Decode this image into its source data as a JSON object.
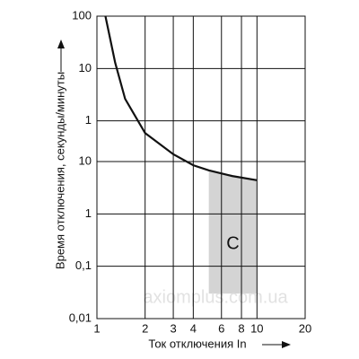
{
  "chart_data": {
    "type": "line",
    "xlabel": "Ток отключения In",
    "ylabel": "Время отключения, секунды/минуты",
    "xscale": "log",
    "yscale": "log",
    "grid": true,
    "xlim": [
      1,
      20
    ],
    "xticks": [
      1,
      2,
      3,
      4,
      6,
      8,
      10,
      20
    ],
    "ylim": [
      0.01,
      6000
    ],
    "yticks": [
      {
        "value": 0.01,
        "label": "0,01"
      },
      {
        "value": 0.1,
        "label": "0,1"
      },
      1,
      10,
      {
        "value": 60,
        "label": "1"
      },
      {
        "value": 600,
        "label": "10"
      },
      {
        "value": 6000,
        "label": "100"
      }
    ],
    "series": [
      {
        "color": "#111111",
        "x": [
          1.13,
          1.3,
          1.5,
          2,
          3,
          4,
          5,
          7,
          10
        ],
        "values": [
          6000,
          776,
          158,
          35,
          13.8,
          8.5,
          6.8,
          5.3,
          4.4
        ]
      }
    ],
    "zone": {
      "label": "C",
      "x": [
        5,
        10
      ],
      "lower": 0.03,
      "color": "#d4d4d4"
    },
    "watermark": "axiomplus.com.ua"
  }
}
